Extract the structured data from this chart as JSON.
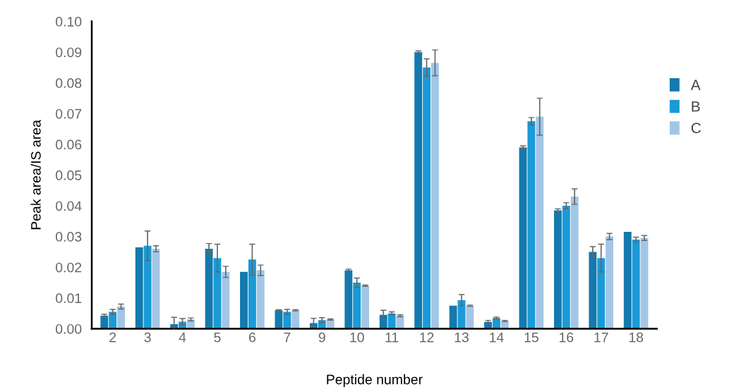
{
  "chart_data": {
    "type": "bar",
    "xlabel": "Peptide number",
    "ylabel": "Peak area/IS area",
    "categories": [
      "2",
      "3",
      "4",
      "5",
      "6",
      "7",
      "9",
      "10",
      "11",
      "12",
      "13",
      "14",
      "15",
      "16",
      "17",
      "18"
    ],
    "series": [
      {
        "name": "A",
        "color": "#1479ae",
        "values": [
          0.0042,
          0.0265,
          0.0015,
          0.026,
          0.0185,
          0.006,
          0.0018,
          0.019,
          0.0045,
          0.09,
          0.0075,
          0.0022,
          0.059,
          0.0385,
          0.025,
          0.0315
        ],
        "errors": [
          0.0005,
          null,
          0.0022,
          0.0017,
          null,
          0.0002,
          [
            0.0006,
            0.0034
          ],
          0.0004,
          0.0015,
          0.0004,
          null,
          0.0005,
          0.0005,
          0.0005,
          0.0017,
          null
        ]
      },
      {
        "name": "B",
        "color": "#1a9ad6",
        "values": [
          0.0055,
          0.027,
          0.0023,
          0.023,
          0.0225,
          0.0055,
          0.0028,
          0.015,
          0.005,
          0.085,
          0.0093,
          0.0035,
          0.0675,
          0.04,
          0.023,
          0.029
        ],
        "errors": [
          0.0008,
          0.0048,
          0.001,
          0.0045,
          0.005,
          0.0008,
          0.0008,
          0.0015,
          0.0005,
          0.0028,
          0.0018,
          0.0003,
          0.0012,
          0.001,
          0.0045,
          0.0008
        ]
      },
      {
        "name": "C",
        "color": "#a3c6e6",
        "values": [
          0.0072,
          0.026,
          0.003,
          0.0185,
          0.019,
          0.006,
          0.003,
          0.014,
          0.0042,
          0.0865,
          0.0075,
          0.0025,
          0.069,
          0.043,
          0.03,
          0.0295
        ],
        "errors": [
          0.0008,
          0.001,
          0.0005,
          0.0018,
          0.0017,
          0.0002,
          0.0002,
          0.0002,
          0.0003,
          0.0042,
          0.0002,
          0.0002,
          0.006,
          0.0025,
          0.001,
          0.0008
        ]
      }
    ],
    "ylim": [
      0,
      0.1
    ],
    "yticks": [
      {
        "value": 0,
        "label": "0.00"
      },
      {
        "value": 0.01,
        "label": "0.01"
      },
      {
        "value": 0.02,
        "label": "0.02"
      },
      {
        "value": 0.03,
        "label": "0.03"
      },
      {
        "value": 0.04,
        "label": "0.04"
      },
      {
        "value": 0.05,
        "label": "0.05"
      },
      {
        "value": 0.06,
        "label": "0.06"
      },
      {
        "value": 0.07,
        "label": "0.07"
      },
      {
        "value": 0.08,
        "label": "0.08"
      },
      {
        "value": 0.09,
        "label": "0.09"
      },
      {
        "value": 0.1,
        "label": "0.10"
      }
    ],
    "grid": false,
    "legend": "right"
  }
}
